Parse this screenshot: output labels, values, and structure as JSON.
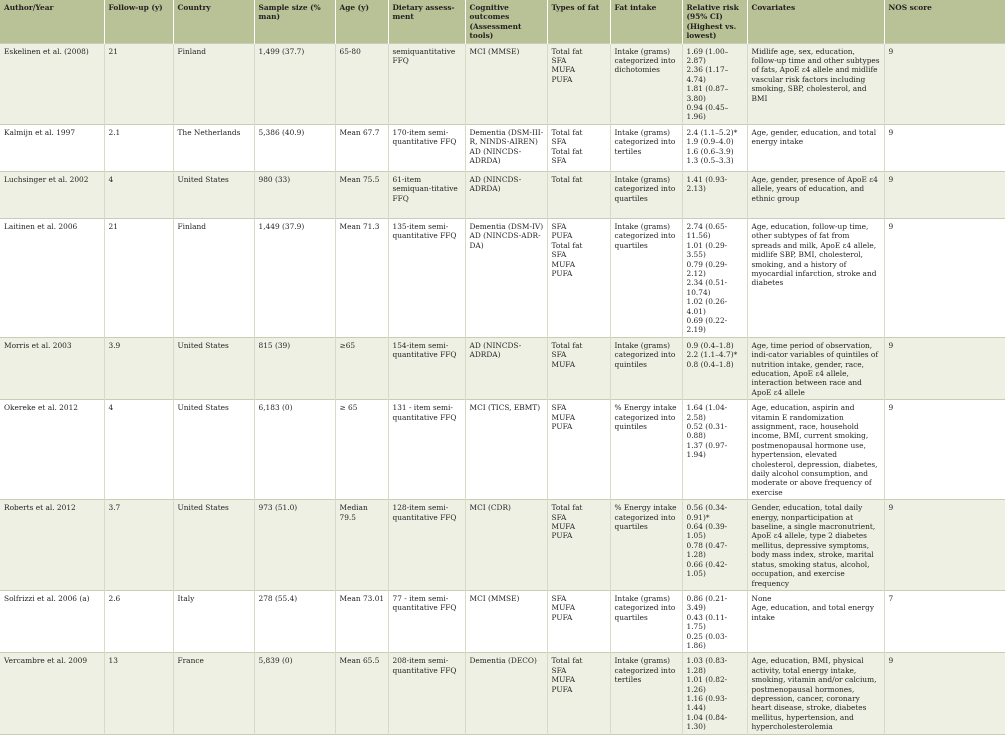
{
  "headers": [
    "Author/Year",
    "Follow-up (y)",
    "Country",
    "Sample size (% man)",
    "Age (y)",
    "Dietary assess-ment",
    "Cognitive outcomes (Assessment tools)",
    "Types of fat",
    "Fat intake",
    "Relative risk (95% CI) (Highest vs. lowest)",
    "Covariates",
    "NOS score"
  ],
  "rows": [
    [
      "Eskelinen et al. (2008)",
      "21",
      "Finland",
      "1,499 (37.7)",
      "65-80",
      "semiquantitative FFQ",
      "MCI (MMSE)",
      "Total fat\nSFA\nMUFA\nPUFA",
      "Intake (grams) categorized into dichotomies",
      "1.69 (1.00–2.87)\n2.36 (1.17–4.74)\n1.81 (0.87–3.80)\n0.94 (0.45–1.96)",
      "Midlife age, sex, education, follow-up time and other subtypes of fats, ApoE ε4 allele and midlife vascular risk factors including smoking, SBP, cholesterol, and BMI",
      "9"
    ],
    [
      "Kalmijn et al. 1997",
      "2.1",
      "The Netherlands",
      "5,386 (40.9)",
      "Mean 67.7",
      "170-item semi-quantitative FFQ",
      "Dementia (DSM-III-R, NINDS-AIREN) AD (NINCDS-ADRDA)",
      "Total fat\nSFA\nTotal fat\nSFA",
      "Intake (grams) categorized into tertiles",
      "2.4 (1.1–5.2)*\n1.9 (0.9–4.0)\n1.6 (0.6–3.9)\n1.3 (0.5–3.3)",
      "Age, gender, education, and total energy intake",
      "9"
    ],
    [
      "Luchsinger et al. 2002",
      "4",
      "United States",
      "980 (33)",
      "Mean 75.5",
      "61-item semiquan-titative FFQ",
      "AD (NINCDS-ADRDA)",
      "Total fat",
      "Intake (grams) categorized into quartiles",
      "1.41 (0.93-2.13)",
      "Age, gender, presence of ApoE ε4 allele, years of education, and ethnic group",
      "9"
    ],
    [
      "Laitinen et al. 2006",
      "21",
      "Finland",
      "1,449 (37.9)",
      "Mean 71.3",
      "135-item semi-quantitative FFQ",
      "Dementia (DSM-IV) AD (NINCDS-ADR-DA)",
      "SFA\nPUFA\nTotal fat\nSFA\nMUFA\nPUFA",
      "Intake (grams) categorized into quartiles",
      "2.74 (0.65-11.56)\n1.01 (0.29-3.55)\n0.79 (0.29-2.12)\n2.34 (0.51-10.74)\n1.02 (0.26-4.01)\n0.69 (0.22-2.19)",
      "Age, education, follow-up time, other subtypes of fat from spreads and milk, ApoE ε4 allele, midlife SBP, BMI, cholesterol, smoking, and a history of myocardial infarction, stroke and diabetes",
      "9"
    ],
    [
      "Morris et al. 2003",
      "3.9",
      "United States",
      "815 (39)",
      "≥65",
      "154-item semi-quantitative FFQ",
      "AD (NINCDS-ADRDA)",
      "Total fat\nSFA\nMUFA",
      "Intake (grams) categorized into quintiles",
      "0.9 (0.4–1.8)\n2.2 (1.1–4.7)*\n0.8 (0.4–1.8)",
      "Age, time period of observation, indi-cator variables of quintiles of nutrition intake, gender, race, education, ApoE ε4 allele, interaction between race and ApoE ε4 allele",
      "9"
    ],
    [
      "Okereke et al. 2012",
      "4",
      "United States",
      "6,183 (0)",
      "≥ 65",
      "131 - item semi-quantitative FFQ",
      "MCI (TICS, EBMT)",
      "SFA\nMUFA\nPUFA",
      "% Energy intake categorized into quintiles",
      "1.64 (1.04-2.58)\n0.52 (0.31-0.88)\n1.37 (0.97-1.94)",
      "Age, education, aspirin and vitamin E randomization assignment, race, household income, BMI, current smoking, postmenopausal hormone use, hypertension, elevated cholesterol, depression, diabetes, daily alcohol consumption, and moderate or above frequency of exercise",
      "9"
    ],
    [
      "Roberts et al. 2012",
      "3.7",
      "United States",
      "973 (51.0)",
      "Median 79.5",
      "128-item semi-quantitative FFQ",
      "MCI (CDR)",
      "Total fat\nSFA\nMUFA\nPUFA",
      "% Energy intake categorized into quartiles",
      "0.56 (0.34-0.91)*\n0.64 (0.39-1.05)\n0.78 (0.47-1.28)\n0.66 (0.42-1.05)",
      "Gender, education, total daily energy, nonparticipation at baseline, a single macronutrient, ApoE ε4 allele, type 2 diabetes mellitus, depressive symptoms, body mass index, stroke, marital status, smoking status, alcohol, occupation, and exercise frequency",
      "9"
    ],
    [
      "Solfrizzi et al. 2006 (a)",
      "2.6",
      "Italy",
      "278 (55.4)",
      "Mean 73.01",
      "77 - item semi-quantitative FFQ",
      "MCI (MMSE)",
      "SFA\nMUFA\nPUFA",
      "Intake (grams) categorized into quartiles",
      "0.86 (0.21-3.49)\n0.43 (0.11-1.75)\n0.25 (0.03-1.86)",
      "None\nAge, education, and total energy intake",
      "7"
    ],
    [
      "Vercambre et al. 2009",
      "13",
      "France",
      "5,839 (0)",
      "Mean 65.5",
      "208-item semi-quantitative FFQ",
      "Dementia (DECO)",
      "Total fat\nSFA\nMUFA\nPUFA",
      "Intake (grams) categorized into tertiles",
      "1.03 (0.83-1.28)\n1.01 (0.82-1.26)\n1.16 (0.93-1.44)\n1.04 (0.84-1.30)",
      "Age, education, BMI, physical activity, total energy intake, smoking, vitamin and/or calcium, postmenopausal hormones, depression, cancer, coronary heart disease, stroke, diabetes mellitus, hypertension, and hypercholesterolemia",
      "9"
    ]
  ]
}
